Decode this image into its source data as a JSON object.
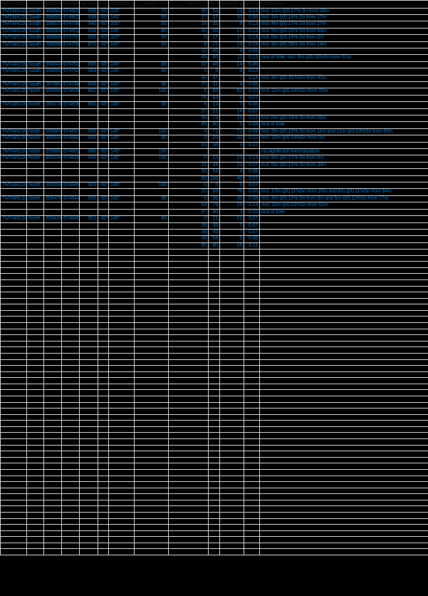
{
  "colors": {
    "background": "#000000",
    "text_blue": "#0070C0",
    "grid_line": "#cfcfcf",
    "header_text": "#161616"
  },
  "table": {
    "columns": [
      {
        "key": "hole-id",
        "label": "Hole Number"
      },
      {
        "key": "area",
        "label": "Area"
      },
      {
        "key": "easting",
        "label": "Easting"
      },
      {
        "key": "northing",
        "label": "Northing"
      },
      {
        "key": "rl",
        "label": "RL (m)"
      },
      {
        "key": "dip",
        "label": "Dip"
      },
      {
        "key": "azimuth",
        "label": "Azimuth"
      },
      {
        "key": "depth",
        "label": "Depth (m)"
      },
      {
        "key": "from",
        "label": "From (m)"
      },
      {
        "key": "to",
        "label": "To (m)"
      },
      {
        "key": "interval",
        "label": "Interval (m)"
      },
      {
        "key": "grade",
        "label": "Sn %"
      },
      {
        "key": "comment",
        "label": "Comment"
      }
    ],
    "rows": [
      {
        "cells": [
          "TMTARC0044",
          "South",
          "358642",
          "6748009",
          "938",
          "-60°",
          "325°",
          "70",
          "30",
          "53",
          "23",
          "0.13",
          "Incl. 12m @0.17% Sn from 36m"
        ]
      },
      {
        "cells": [
          "TMTARC0045",
          "South",
          "358692",
          "6748026",
          "938",
          "-60°",
          "145°",
          "50",
          "17",
          "27",
          "10",
          "0.06",
          "Incl. 2m @0.14% Sn from 17m"
        ]
      },
      {
        "cells": [
          "TMTARC0046",
          "South",
          "358575",
          "6747956",
          "940",
          "-60°",
          "325°",
          "50",
          "24",
          "32",
          "8",
          "0.13",
          "Incl. 4m @0.17% Sn from 27m"
        ]
      },
      {
        "cells": [
          "TMTARC0047",
          "South",
          "358569",
          "6748024",
          "934",
          "-60°",
          "145°",
          "80",
          "43",
          "60",
          "17",
          "0.13",
          "Incl. 5m @0.20% Sn from 43m"
        ]
      },
      {
        "cells": [
          "TMTARC0048",
          "South",
          "358560",
          "6747972",
          "932",
          "-60°",
          "325°",
          "50",
          "0",
          "17",
          "17",
          "0.13",
          "Incl. 6m @0.16% Sn from 2m"
        ]
      },
      {
        "cells": [
          "TMTARC0049",
          "South",
          "358098",
          "6747582",
          "871",
          "-60°",
          "145°",
          "60",
          "8",
          "21",
          "13",
          "0.19",
          "Incl. 4m @0.35% Sn from 14m"
        ]
      },
      {
        "cells": [
          "",
          "",
          "",
          "",
          "",
          "",
          "",
          "",
          "42",
          "46",
          "4",
          "0.09",
          ""
        ]
      },
      {
        "cells": [
          "",
          "",
          "",
          "",
          "",
          "",
          "",
          "",
          "49",
          "60",
          "11",
          "0.13",
          "end of hole, Incl. 5m @0.18%Sn from 51m"
        ]
      },
      {
        "cells": [
          "TMTARC0050",
          "South",
          "358043",
          "6747539",
          "860",
          "-60°",
          "145°",
          "80",
          "32",
          "46",
          "14",
          "0.06",
          ""
        ]
      },
      {
        "cells": [
          "TMTARC0051",
          "South",
          "358060",
          "6747522",
          "863",
          "-60°",
          "145°",
          "60",
          "0",
          "9",
          "9",
          "0.13",
          ""
        ]
      },
      {
        "cells": [
          "",
          "",
          "",
          "",
          "",
          "",
          "",
          "",
          "40",
          "47",
          "7",
          "0.14",
          "Incl. 4m @0.20 %Sn from 40m"
        ]
      },
      {
        "cells": [
          "TMTARC0052",
          "South",
          "357981",
          "6747482",
          "846",
          "-60°",
          "145°",
          "90",
          "27",
          "31",
          "4",
          "0.05",
          ""
        ]
      },
      {
        "cells": [
          "TMTARC0053",
          "North",
          "359260",
          "6748390",
          "862",
          "-60°",
          "145°",
          "140",
          "6",
          "68",
          "62",
          "0.10",
          "Incl. 12m @0.14%Sn from 35m"
        ]
      },
      {
        "cells": [
          "",
          "",
          "",
          "",
          "",
          "",
          "",
          "",
          "75",
          "83",
          "8",
          "0.07",
          ""
        ]
      },
      {
        "cells": [
          "TMTARC0054",
          "North",
          "359174",
          "6748354",
          "891",
          "-60°",
          "145°",
          "90",
          "6",
          "13",
          "7",
          "0.08",
          ""
        ]
      },
      {
        "cells": [
          "",
          "",
          "",
          "",
          "",
          "",
          "",
          "",
          "37",
          "51",
          "14",
          "0.07",
          ""
        ]
      },
      {
        "cells": [
          "",
          "",
          "",
          "",
          "",
          "",
          "",
          "",
          "54",
          "73",
          "19",
          "0.12",
          "Incl. 6m @0.18% Sn from 58m"
        ]
      },
      {
        "cells": [
          "",
          "",
          "",
          "",
          "",
          "",
          "",
          "",
          "85",
          "90",
          "5",
          "0.09",
          "end of hole"
        ]
      },
      {
        "cells": [
          "TMTARC0055",
          "North",
          "359863",
          "6748574",
          "926",
          "-60°",
          "145°",
          "120",
          "0",
          "71",
          "71",
          "0.09",
          "Incl. 9m @0.15% Sn from 11m and 11m @0.13%Sn from 60m"
        ]
      },
      {
        "cells": [
          "TMTARC0056",
          "North",
          "359918",
          "6748602",
          "900",
          "-60°",
          "145°",
          "90",
          "0",
          "20",
          "20",
          "0.12",
          "Incl. 15m @0.14%Sn from 0m"
        ]
      },
      {
        "cells": [
          "",
          "",
          "",
          "",
          "",
          "",
          "",
          "",
          "33",
          "36",
          "3",
          "0.32",
          ""
        ]
      },
      {
        "cells": [
          "TMTARC0057",
          "North",
          "359880",
          "6748617",
          "880",
          "-60°",
          "145°",
          "100",
          "",
          "",
          "",
          "",
          "no significant mineralisation"
        ]
      },
      {
        "cells": [
          "TMTARC0058",
          "North",
          "359234",
          "6748189",
          "943",
          "-60°",
          "145°",
          "100",
          "0",
          "13",
          "13",
          "0.13",
          "Incl. 8m @0.17% Sn from 0m"
        ]
      },
      {
        "cells": [
          "",
          "",
          "",
          "",
          "",
          "",
          "",
          "",
          "21",
          "44",
          "23",
          "0.07",
          "Incl. 6m @0.12% Sn from 34m"
        ]
      },
      {
        "cells": [
          "",
          "",
          "",
          "",
          "",
          "",
          "",
          "",
          "50",
          "54",
          "4",
          "0.08",
          ""
        ]
      },
      {
        "cells": [
          "",
          "",
          "",
          "",
          "",
          "",
          "",
          "",
          "60",
          "100",
          "40",
          "0.07",
          ""
        ]
      },
      {
        "cells": [
          "TMTARC0059",
          "North",
          "359559",
          "6748493",
          "903",
          "-60°",
          "145°",
          "100",
          "0",
          "5",
          "5",
          "0.07",
          ""
        ]
      },
      {
        "cells": [
          "",
          "",
          "",
          "",
          "",
          "",
          "",
          "",
          "20",
          "96",
          "76",
          "0.08",
          "Incl. 17m @0.11%Sn from 20m and 6m @0.11%Sn from 84m"
        ]
      },
      {
        "cells": [
          "TMTARC0060",
          "North",
          "359478",
          "6748446",
          "900",
          "-60°",
          "145°",
          "90",
          "0",
          "36",
          "36",
          "0.08",
          "Incl. 4m @0.12% Sn from 0m and 5m @0.12%Sn from 17m"
        ]
      },
      {
        "cells": [
          "",
          "",
          "",
          "",
          "",
          "",
          "",
          "",
          "54",
          "79",
          "25",
          "0.13",
          "Incl. 10m @0.21%Sn from 61m"
        ]
      },
      {
        "cells": [
          "",
          "",
          "",
          "",
          "",
          "",
          "",
          "",
          "87",
          "90",
          "3",
          "0.10",
          "end of hole"
        ]
      },
      {
        "cells": [
          "TMTARC0061",
          "North",
          "359434",
          "6748402",
          "901",
          "-60°",
          "145°",
          "80",
          "0",
          "21",
          "21",
          "0.07",
          ""
        ]
      },
      {
        "cells": [
          "",
          "",
          "",
          "",
          "",
          "",
          "",
          "",
          "28",
          "35",
          "7",
          "0.07",
          ""
        ]
      },
      {
        "cells": [
          "",
          "",
          "",
          "",
          "",
          "",
          "",
          "",
          "38",
          "45",
          "7",
          "0.07",
          ""
        ]
      },
      {
        "cells": [
          "",
          "",
          "",
          "",
          "",
          "",
          "",
          "",
          "49",
          "54",
          "5",
          "0.08",
          ""
        ]
      },
      {
        "cells": [
          "",
          "",
          "",
          "",
          "",
          "",
          "",
          "",
          "65",
          "80",
          "15",
          "0.11",
          ""
        ]
      }
    ],
    "trailing_empty_rows": 50
  }
}
